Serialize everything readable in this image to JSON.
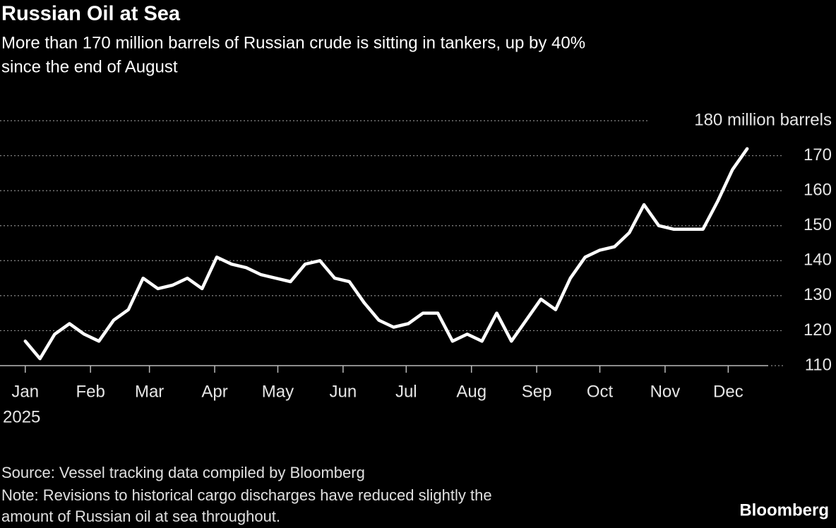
{
  "chart_data": {
    "type": "line",
    "title": "Russian Oil at Sea",
    "subtitle": [
      "More than 170 million barrels of Russian crude is sitting in tankers, up by 40%",
      "since the end of August"
    ],
    "x": [
      0,
      7,
      14,
      21,
      28,
      35,
      42,
      49,
      56,
      63,
      70,
      77,
      84,
      91,
      98,
      105,
      112,
      119,
      126,
      133,
      140,
      147,
      154,
      161,
      168,
      175,
      182,
      189,
      196,
      203,
      210,
      217,
      224,
      231,
      238,
      245,
      252,
      259,
      266,
      273,
      280,
      287,
      294,
      301,
      308,
      315,
      322,
      329,
      336,
      343
    ],
    "series": [
      {
        "name": "Russian oil at sea",
        "color": "#ffffff",
        "values": [
          117,
          112,
          119,
          122,
          119,
          117,
          123,
          126,
          135,
          132,
          133,
          135,
          132,
          141,
          139,
          138,
          136,
          135,
          134,
          139,
          140,
          135,
          134,
          128,
          123,
          121,
          122,
          125,
          125,
          117,
          119,
          117,
          125,
          117,
          123,
          129,
          126,
          135,
          141,
          143,
          144,
          148,
          156,
          150,
          149,
          149,
          149,
          157,
          166,
          172
        ]
      }
    ],
    "xlim": [
      -12,
      353
    ],
    "xticks": [
      {
        "value": 0,
        "label": "Jan"
      },
      {
        "value": 31,
        "label": "Feb"
      },
      {
        "value": 59,
        "label": "Mar"
      },
      {
        "value": 90,
        "label": "Apr"
      },
      {
        "value": 120,
        "label": "May"
      },
      {
        "value": 151,
        "label": "Jun"
      },
      {
        "value": 181,
        "label": "Jul"
      },
      {
        "value": 212,
        "label": "Aug"
      },
      {
        "value": 243,
        "label": "Sep"
      },
      {
        "value": 273,
        "label": "Oct"
      },
      {
        "value": 304,
        "label": "Nov"
      },
      {
        "value": 334,
        "label": "Dec"
      }
    ],
    "x_year_label": "2025",
    "ylim": [
      110,
      180
    ],
    "yticks": [
      110,
      120,
      130,
      140,
      150,
      160,
      170,
      {
        "value": 180,
        "label": "180 million barrels"
      }
    ],
    "grid": true,
    "source": "Source: Vessel tracking data compiled by Bloomberg",
    "note": [
      "Note: Revisions to historical cargo discharges have reduced slightly the",
      "amount of Russian oil at sea throughout."
    ],
    "brand": "Bloomberg"
  }
}
